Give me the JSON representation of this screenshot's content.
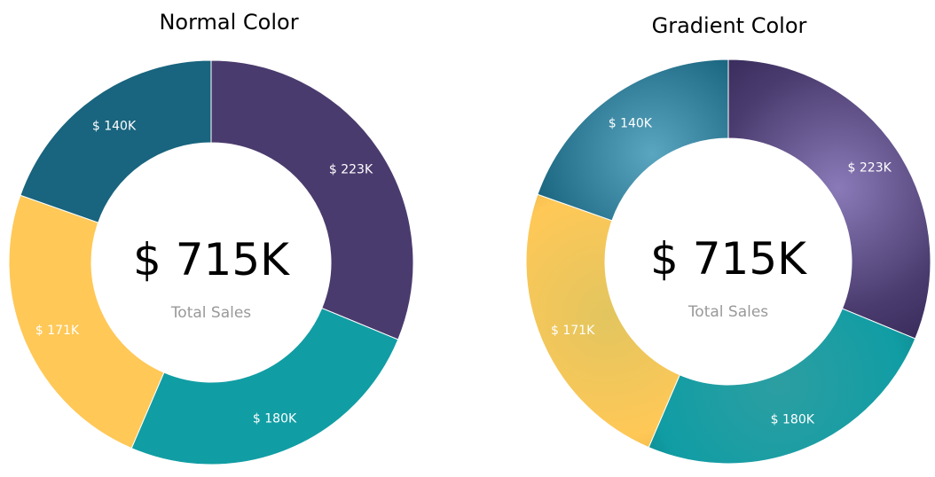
{
  "chart_data": [
    {
      "type": "pie",
      "title": "Normal Color",
      "style": "solid",
      "center_value": "$ 715K",
      "center_label": "Total Sales",
      "categories": [
        "",
        "",
        "",
        ""
      ],
      "values": [
        223,
        180,
        171,
        140
      ],
      "labels": [
        "$ 223K",
        "$ 180K",
        "$ 171K",
        "$ 140K"
      ],
      "colors": [
        "#4a3b6e",
        "#119da4",
        "#ffc857",
        "#19647e"
      ],
      "legend": "none"
    },
    {
      "type": "pie",
      "title": "Gradient Color",
      "style": "radial-gradient",
      "center_value": "$ 715K",
      "center_label": "Total Sales",
      "categories": [
        "",
        "",
        "",
        ""
      ],
      "values": [
        223,
        180,
        171,
        140
      ],
      "labels": [
        "$ 223K",
        "$ 180K",
        "$ 171K",
        "$ 140K"
      ],
      "colors": [
        "#4a3b6e",
        "#119da4",
        "#ffc857",
        "#19647e"
      ],
      "gradient_inner_colors": [
        "#8a7ab8",
        "#2c9ea2",
        "#e2c55f",
        "#5aa6c0"
      ],
      "gradient_outer_colors": [
        "#150f36",
        "#054b4f",
        "#b07e10",
        "#1a4e6a"
      ],
      "legend": "none"
    }
  ]
}
